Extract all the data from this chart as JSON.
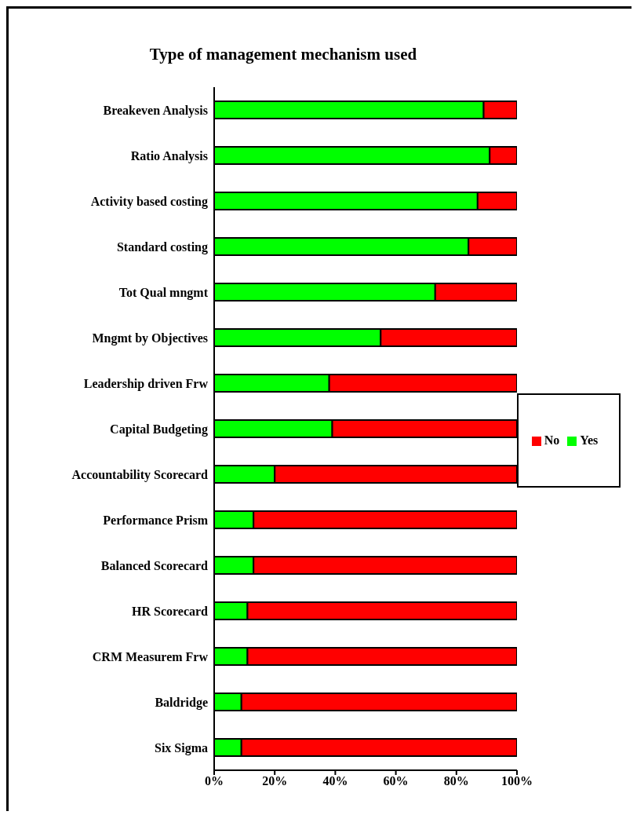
{
  "chart_data": {
    "type": "bar",
    "title": "Type of management mechanism used",
    "orientation": "horizontal",
    "stacked": true,
    "categories": [
      "Breakeven Analysis",
      "Ratio Analysis",
      "Activity based costing",
      "Standard costing",
      "Tot Qual mngmt",
      "Mngmt by Objectives",
      "Leadership driven Frw",
      "Capital Budgeting",
      "Accountability Scorecard",
      "Performance Prism",
      "Balanced Scorecard",
      "HR Scorecard",
      "CRM Measurem Frw",
      "Baldridge",
      "Six Sigma"
    ],
    "series": [
      {
        "name": "Yes",
        "color": "#00ff00",
        "values": [
          89,
          91,
          87,
          84,
          73,
          55,
          38,
          39,
          20,
          13,
          13,
          11,
          11,
          9,
          9
        ]
      },
      {
        "name": "No",
        "color": "#ff0000",
        "values": [
          11,
          9,
          13,
          16,
          27,
          45,
          62,
          61,
          80,
          87,
          87,
          89,
          89,
          91,
          91
        ]
      }
    ],
    "xlim": [
      0,
      100
    ],
    "xticks": [
      {
        "value": 0,
        "label": "0%"
      },
      {
        "value": 20,
        "label": "20%"
      },
      {
        "value": 40,
        "label": "40%"
      },
      {
        "value": 60,
        "label": "60%"
      },
      {
        "value": 80,
        "label": "80%"
      },
      {
        "value": 100,
        "label": "100%"
      }
    ],
    "grid": false,
    "legend": "right"
  }
}
